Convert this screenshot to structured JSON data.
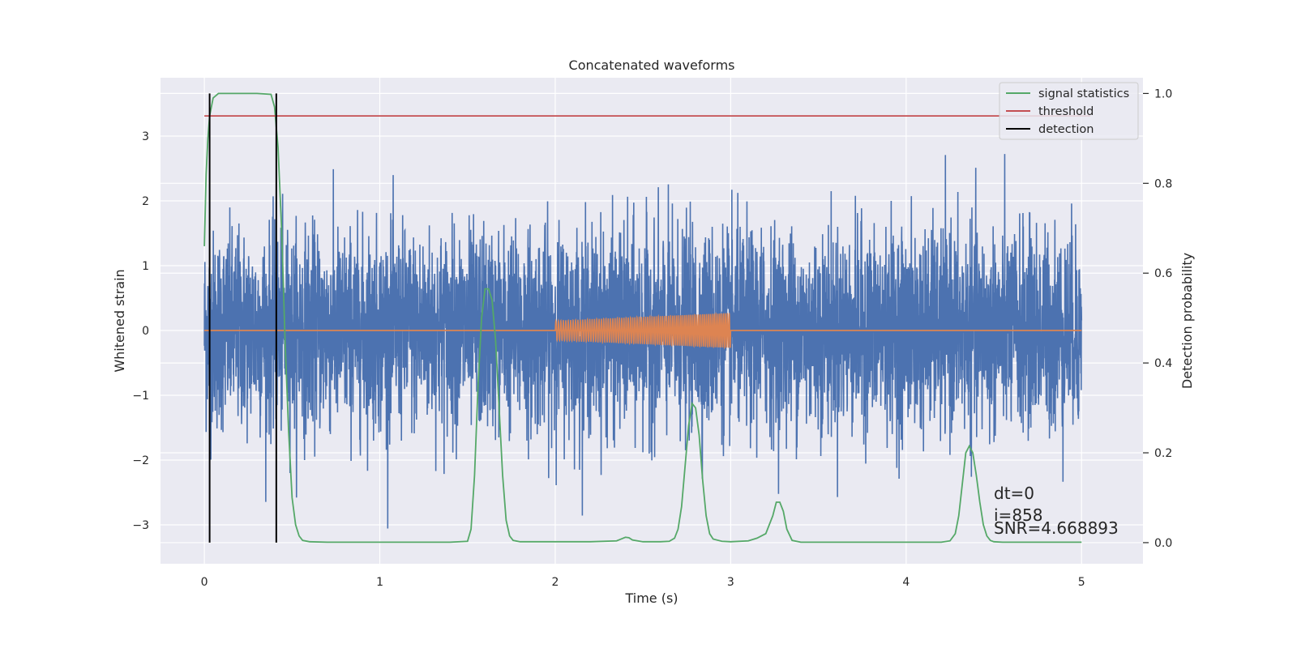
{
  "chart_data": {
    "type": "line",
    "title": "Concatenated waveforms",
    "xlabel": "Time (s)",
    "ylabel": "Whitened strain",
    "y2label": "Detection probability",
    "xlim": [
      -0.25,
      5.35
    ],
    "ylim": [
      -3.6,
      3.9
    ],
    "y2lim": [
      -0.047,
      1.035
    ],
    "x_ticks": [
      0,
      1,
      2,
      3,
      4,
      5
    ],
    "y_ticks": [
      -3,
      -2,
      -1,
      0,
      1,
      2,
      3
    ],
    "y2_ticks": [
      0.0,
      0.2,
      0.4,
      0.6,
      0.8,
      1.0
    ],
    "x_tick_labels": [
      "0",
      "1",
      "2",
      "3",
      "4",
      "5"
    ],
    "y_tick_labels": [
      "−3",
      "−2",
      "−1",
      "0",
      "1",
      "2",
      "3"
    ],
    "y2_tick_labels": [
      "0.0",
      "0.2",
      "0.4",
      "0.6",
      "0.8",
      "1.0"
    ],
    "grid": true,
    "legend_position": "top-right",
    "strain_noise": {
      "color": "#4c72b0",
      "x_range": [
        0,
        5
      ],
      "typical_amplitude": 0.8,
      "peak_max": 3.55,
      "peak_min": -3.3
    },
    "injected_signal": {
      "color": "#dd8452",
      "x_range": [
        2.0,
        3.0
      ],
      "amplitude_start": 0.15,
      "amplitude_end": 0.27,
      "baseline": 0
    },
    "series": [
      {
        "name": "signal statistics",
        "axis": "right",
        "color": "#55a868",
        "x": [
          0,
          0.01,
          0.02,
          0.03,
          0.05,
          0.08,
          0.1,
          0.2,
          0.3,
          0.38,
          0.4,
          0.42,
          0.44,
          0.46,
          0.48,
          0.5,
          0.52,
          0.54,
          0.56,
          0.6,
          0.7,
          0.8,
          1.0,
          1.2,
          1.4,
          1.5,
          1.52,
          1.54,
          1.56,
          1.58,
          1.6,
          1.62,
          1.64,
          1.66,
          1.68,
          1.7,
          1.72,
          1.74,
          1.76,
          1.8,
          2.0,
          2.2,
          2.35,
          2.4,
          2.42,
          2.44,
          2.5,
          2.6,
          2.65,
          2.68,
          2.7,
          2.72,
          2.74,
          2.76,
          2.78,
          2.8,
          2.82,
          2.84,
          2.86,
          2.88,
          2.9,
          2.95,
          3.0,
          3.1,
          3.15,
          3.2,
          3.24,
          3.26,
          3.28,
          3.3,
          3.32,
          3.35,
          3.4,
          3.6,
          3.8,
          4.0,
          4.2,
          4.25,
          4.28,
          4.3,
          4.32,
          4.34,
          4.36,
          4.38,
          4.4,
          4.42,
          4.44,
          4.46,
          4.48,
          4.5,
          4.55,
          4.6,
          4.8,
          5.0
        ],
        "values": [
          0.66,
          0.82,
          0.9,
          0.95,
          0.99,
          1.0,
          1.0,
          1.0,
          1.0,
          0.998,
          0.97,
          0.88,
          0.7,
          0.45,
          0.25,
          0.1,
          0.04,
          0.015,
          0.005,
          0.002,
          0.001,
          0.001,
          0.001,
          0.001,
          0.001,
          0.003,
          0.03,
          0.15,
          0.35,
          0.5,
          0.565,
          0.565,
          0.54,
          0.45,
          0.3,
          0.15,
          0.05,
          0.015,
          0.005,
          0.002,
          0.002,
          0.002,
          0.004,
          0.012,
          0.011,
          0.006,
          0.002,
          0.002,
          0.003,
          0.01,
          0.03,
          0.08,
          0.17,
          0.26,
          0.31,
          0.3,
          0.24,
          0.14,
          0.06,
          0.02,
          0.008,
          0.003,
          0.002,
          0.004,
          0.01,
          0.02,
          0.06,
          0.09,
          0.09,
          0.07,
          0.03,
          0.005,
          0.001,
          0.001,
          0.001,
          0.001,
          0.001,
          0.004,
          0.02,
          0.06,
          0.13,
          0.2,
          0.215,
          0.2,
          0.15,
          0.09,
          0.04,
          0.015,
          0.005,
          0.002,
          0.001,
          0.001,
          0.001,
          0.001
        ]
      },
      {
        "name": "threshold",
        "axis": "right",
        "color": "#c44e52",
        "x": [
          0,
          5.05
        ],
        "values": [
          0.95,
          0.95
        ]
      },
      {
        "name": "detection",
        "axis": "right",
        "color": "#000000",
        "type": "vlines",
        "x": [
          0.03,
          0.41
        ],
        "range": [
          0.0,
          1.0
        ]
      }
    ],
    "annotations": [
      "dt=0",
      "i=858",
      "SNR=4.668893"
    ]
  }
}
